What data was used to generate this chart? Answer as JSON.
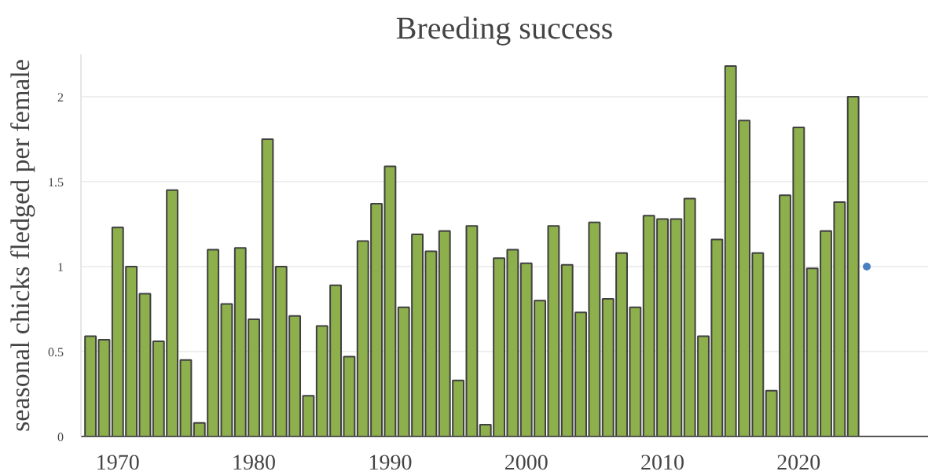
{
  "chart_data": {
    "type": "bar",
    "title": "Breeding success",
    "ylabel": "seasonal chicks fledged per female",
    "x": [
      1968,
      1969,
      1970,
      1971,
      1972,
      1973,
      1974,
      1975,
      1976,
      1977,
      1978,
      1979,
      1980,
      1981,
      1982,
      1983,
      1984,
      1985,
      1986,
      1987,
      1988,
      1989,
      1990,
      1991,
      1992,
      1993,
      1994,
      1995,
      1996,
      1997,
      1998,
      1999,
      2000,
      2001,
      2002,
      2003,
      2004,
      2005,
      2006,
      2007,
      2008,
      2009,
      2010,
      2011,
      2012,
      2013,
      2014,
      2015,
      2016,
      2017,
      2018,
      2019,
      2020,
      2021,
      2022,
      2023,
      2024
    ],
    "series": [
      {
        "color": "#8db04c",
        "values": [
          0.59,
          0.57,
          1.23,
          1.0,
          0.84,
          0.56,
          1.45,
          0.45,
          0.08,
          1.1,
          0.78,
          1.11,
          0.69,
          1.75,
          1.0,
          0.71,
          0.24,
          0.65,
          0.89,
          0.47,
          1.15,
          1.37,
          1.59,
          0.76,
          1.19,
          1.09,
          1.21,
          0.33,
          1.24,
          0.07,
          1.05,
          1.1,
          1.02,
          0.8,
          1.24,
          1.01,
          0.73,
          1.26,
          0.81,
          1.08,
          0.76,
          1.3,
          1.28,
          1.28,
          1.4,
          0.59,
          1.16,
          2.18,
          1.86,
          1.08,
          0.27,
          1.42,
          1.82,
          0.99,
          1.21,
          1.38,
          2.0
        ]
      },
      {
        "type": "scatter",
        "color": "#4a7fc1",
        "x": [
          2025
        ],
        "values": [
          1.0
        ]
      }
    ],
    "xlim": [
      1967.3,
      2029.5
    ],
    "xticks": [
      1970,
      1980,
      1990,
      2000,
      2010,
      2020
    ],
    "ylim": [
      0,
      2.25
    ],
    "yticks": [
      0,
      0.5,
      1,
      1.5,
      2
    ],
    "grid": "y"
  }
}
